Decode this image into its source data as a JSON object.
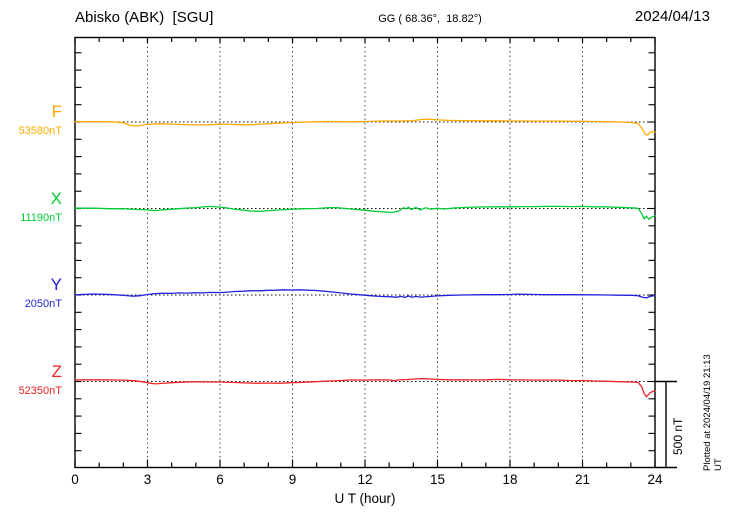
{
  "header": {
    "station": "Abisko (ABK)  [SGU]",
    "coords": "GG ( 68.36°,  18.82°)",
    "date": "2024/04/13"
  },
  "side": {
    "scale_label": "500 nT",
    "plotted_note": "Plotted at 2024/04/19 21:13 UT"
  },
  "chart_data": {
    "type": "line",
    "title": "Abisko (ABK) [SGU] magnetogram 2024/04/13",
    "xlabel": "U T (hour)",
    "x_range": [
      0,
      24
    ],
    "x_ticks": [
      "0",
      "3",
      "6",
      "9",
      "12",
      "15",
      "18",
      "21",
      "24"
    ],
    "x_major_step_hours": 3,
    "x_minor_step_hours": 1,
    "y_tick_step_nT": 100,
    "channel_spacing_nT": 500,
    "scale_bar_nT": 500,
    "grid": "vertical-dotted-every-3h",
    "legend_position": "left",
    "series": [
      {
        "name": "F",
        "baseline_label": "53580nT",
        "baseline_nT": 53580,
        "color": "#FFAA00",
        "points": [
          [
            0,
            2
          ],
          [
            0.5,
            2
          ],
          [
            1,
            2
          ],
          [
            1.5,
            1
          ],
          [
            2,
            -4
          ],
          [
            2.3,
            -20
          ],
          [
            2.6,
            -23
          ],
          [
            3,
            -14
          ],
          [
            3.5,
            -10
          ],
          [
            4,
            -12
          ],
          [
            4.5,
            -15
          ],
          [
            5,
            -17
          ],
          [
            5.5,
            -16
          ],
          [
            6,
            -12
          ],
          [
            6.5,
            -14
          ],
          [
            7,
            -16
          ],
          [
            7.5,
            -14
          ],
          [
            8,
            -10
          ],
          [
            8.5,
            -6
          ],
          [
            9,
            -3
          ],
          [
            9.5,
            -1
          ],
          [
            10,
            1
          ],
          [
            10.5,
            3
          ],
          [
            11,
            2
          ],
          [
            11.5,
            1
          ],
          [
            12,
            3
          ],
          [
            12.5,
            5
          ],
          [
            13,
            6
          ],
          [
            13.5,
            6
          ],
          [
            14,
            8
          ],
          [
            14.3,
            14
          ],
          [
            14.6,
            16
          ],
          [
            15,
            12
          ],
          [
            15.5,
            9
          ],
          [
            16,
            8
          ],
          [
            16.5,
            8
          ],
          [
            17,
            7
          ],
          [
            17.5,
            7
          ],
          [
            18,
            6
          ],
          [
            18.5,
            6
          ],
          [
            19,
            5
          ],
          [
            19.5,
            5
          ],
          [
            20,
            5
          ],
          [
            20.5,
            4
          ],
          [
            21,
            4
          ],
          [
            21.5,
            3
          ],
          [
            22,
            2
          ],
          [
            22.5,
            0
          ],
          [
            23,
            -3
          ],
          [
            23.3,
            -8
          ],
          [
            23.45,
            -35
          ],
          [
            23.6,
            -70
          ],
          [
            23.7,
            -76
          ],
          [
            23.8,
            -60
          ],
          [
            23.9,
            -55
          ],
          [
            24,
            -58
          ]
        ]
      },
      {
        "name": "X",
        "baseline_label": "11190nT",
        "baseline_nT": 11190,
        "color": "#00CC33",
        "points": [
          [
            0,
            2
          ],
          [
            0.5,
            2
          ],
          [
            1,
            1
          ],
          [
            1.5,
            -2
          ],
          [
            2,
            -1
          ],
          [
            2.5,
            -5
          ],
          [
            3,
            -8
          ],
          [
            3.3,
            -12
          ],
          [
            3.6,
            -8
          ],
          [
            4,
            -4
          ],
          [
            4.5,
            1
          ],
          [
            5,
            5
          ],
          [
            5.3,
            9
          ],
          [
            5.6,
            12
          ],
          [
            6,
            8
          ],
          [
            6.3,
            3
          ],
          [
            6.6,
            -4
          ],
          [
            7,
            -10
          ],
          [
            7.3,
            -15
          ],
          [
            7.6,
            -17
          ],
          [
            8,
            -12
          ],
          [
            8.5,
            -8
          ],
          [
            9,
            -4
          ],
          [
            9.5,
            -1
          ],
          [
            10,
            0
          ],
          [
            10.3,
            3
          ],
          [
            10.6,
            6
          ],
          [
            10.9,
            4
          ],
          [
            11.2,
            0
          ],
          [
            11.5,
            -4
          ],
          [
            12,
            -10
          ],
          [
            12.4,
            -16
          ],
          [
            12.8,
            -20
          ],
          [
            13.1,
            -23
          ],
          [
            13.4,
            -15
          ],
          [
            13.6,
            5
          ],
          [
            13.7,
            -3
          ],
          [
            13.8,
            8
          ],
          [
            13.9,
            -6
          ],
          [
            14.1,
            6
          ],
          [
            14.3,
            -8
          ],
          [
            14.5,
            4
          ],
          [
            14.7,
            -4
          ],
          [
            15,
            1
          ],
          [
            15.3,
            -3
          ],
          [
            15.6,
            2
          ],
          [
            16,
            6
          ],
          [
            16.5,
            8
          ],
          [
            17,
            9
          ],
          [
            17.5,
            10
          ],
          [
            18,
            10
          ],
          [
            18.5,
            11
          ],
          [
            19,
            11
          ],
          [
            19.5,
            12
          ],
          [
            20,
            12
          ],
          [
            20.5,
            11
          ],
          [
            21,
            12
          ],
          [
            21.5,
            10
          ],
          [
            22,
            9
          ],
          [
            22.5,
            7
          ],
          [
            23,
            4
          ],
          [
            23.3,
            1
          ],
          [
            23.45,
            -30
          ],
          [
            23.55,
            -60
          ],
          [
            23.65,
            -45
          ],
          [
            23.75,
            -62
          ],
          [
            23.85,
            -50
          ],
          [
            24,
            -42
          ]
        ]
      },
      {
        "name": "Y",
        "baseline_label": "2050nT",
        "baseline_nT": 2050,
        "color": "#2222DD",
        "points": [
          [
            0,
            1
          ],
          [
            0.5,
            4
          ],
          [
            0.8,
            6
          ],
          [
            1.2,
            4
          ],
          [
            1.6,
            2
          ],
          [
            2,
            -2
          ],
          [
            2.4,
            -7
          ],
          [
            2.7,
            -4
          ],
          [
            3,
            3
          ],
          [
            3.3,
            8
          ],
          [
            3.6,
            10
          ],
          [
            4,
            9
          ],
          [
            4.3,
            12
          ],
          [
            4.6,
            11
          ],
          [
            5,
            13
          ],
          [
            5.3,
            12
          ],
          [
            5.6,
            15
          ],
          [
            6,
            14
          ],
          [
            6.3,
            17
          ],
          [
            6.6,
            20
          ],
          [
            7,
            22
          ],
          [
            7.3,
            25
          ],
          [
            7.6,
            24
          ],
          [
            8,
            27
          ],
          [
            8.3,
            28
          ],
          [
            8.6,
            30
          ],
          [
            9,
            29
          ],
          [
            9.3,
            30
          ],
          [
            9.6,
            28
          ],
          [
            10,
            26
          ],
          [
            10.3,
            22
          ],
          [
            10.6,
            18
          ],
          [
            11,
            12
          ],
          [
            11.4,
            6
          ],
          [
            11.8,
            1
          ],
          [
            12.2,
            -4
          ],
          [
            12.6,
            -8
          ],
          [
            13,
            -10
          ],
          [
            13.3,
            -13
          ],
          [
            13.5,
            -8
          ],
          [
            13.65,
            -14
          ],
          [
            13.8,
            -6
          ],
          [
            13.95,
            -13
          ],
          [
            14.1,
            -8
          ],
          [
            14.3,
            -12
          ],
          [
            14.6,
            -9
          ],
          [
            15,
            -5
          ],
          [
            15.5,
            -2
          ],
          [
            16,
            0
          ],
          [
            16.5,
            1
          ],
          [
            17,
            2
          ],
          [
            17.5,
            2
          ],
          [
            18,
            3
          ],
          [
            18.3,
            5
          ],
          [
            18.6,
            4
          ],
          [
            19,
            3
          ],
          [
            19.5,
            2
          ],
          [
            20,
            2
          ],
          [
            20.5,
            2
          ],
          [
            21,
            1
          ],
          [
            21.5,
            1
          ],
          [
            22,
            0
          ],
          [
            22.5,
            -1
          ],
          [
            23,
            -2
          ],
          [
            23.3,
            -4
          ],
          [
            23.5,
            -14
          ],
          [
            23.65,
            -17
          ],
          [
            23.8,
            -8
          ],
          [
            24,
            -3
          ]
        ]
      },
      {
        "name": "Z",
        "baseline_label": "52350nT",
        "baseline_nT": 52350,
        "color": "#EE2222",
        "points": [
          [
            0,
            9
          ],
          [
            0.5,
            10
          ],
          [
            1,
            10
          ],
          [
            1.5,
            9
          ],
          [
            2,
            8
          ],
          [
            2.5,
            4
          ],
          [
            2.8,
            -2
          ],
          [
            3.1,
            -10
          ],
          [
            3.35,
            -14
          ],
          [
            3.6,
            -11
          ],
          [
            4,
            -7
          ],
          [
            4.4,
            -4
          ],
          [
            4.8,
            -2
          ],
          [
            5.2,
            -2
          ],
          [
            5.6,
            -3
          ],
          [
            6,
            -3
          ],
          [
            6.5,
            -5
          ],
          [
            7,
            -8
          ],
          [
            7.5,
            -10
          ],
          [
            8,
            -9
          ],
          [
            8.5,
            -10
          ],
          [
            9,
            -7
          ],
          [
            9.5,
            -4
          ],
          [
            10,
            -1
          ],
          [
            10.5,
            3
          ],
          [
            11,
            6
          ],
          [
            11.5,
            9
          ],
          [
            12,
            8
          ],
          [
            12.5,
            10
          ],
          [
            13,
            9
          ],
          [
            13.2,
            4
          ],
          [
            13.4,
            9
          ],
          [
            13.7,
            11
          ],
          [
            14,
            14
          ],
          [
            14.3,
            17
          ],
          [
            14.6,
            15
          ],
          [
            15,
            12
          ],
          [
            15.5,
            10
          ],
          [
            16,
            10
          ],
          [
            16.5,
            9
          ],
          [
            17,
            10
          ],
          [
            17.5,
            12
          ],
          [
            18,
            10
          ],
          [
            18.5,
            9
          ],
          [
            19,
            8
          ],
          [
            19.5,
            8
          ],
          [
            20,
            8
          ],
          [
            20.5,
            6
          ],
          [
            21,
            5
          ],
          [
            21.5,
            3
          ],
          [
            22,
            1
          ],
          [
            22.5,
            -1
          ],
          [
            23,
            -3
          ],
          [
            23.3,
            -5
          ],
          [
            23.45,
            -30
          ],
          [
            23.55,
            -70
          ],
          [
            23.65,
            -88
          ],
          [
            23.8,
            -65
          ],
          [
            23.9,
            -58
          ],
          [
            24,
            -55
          ]
        ]
      }
    ]
  }
}
